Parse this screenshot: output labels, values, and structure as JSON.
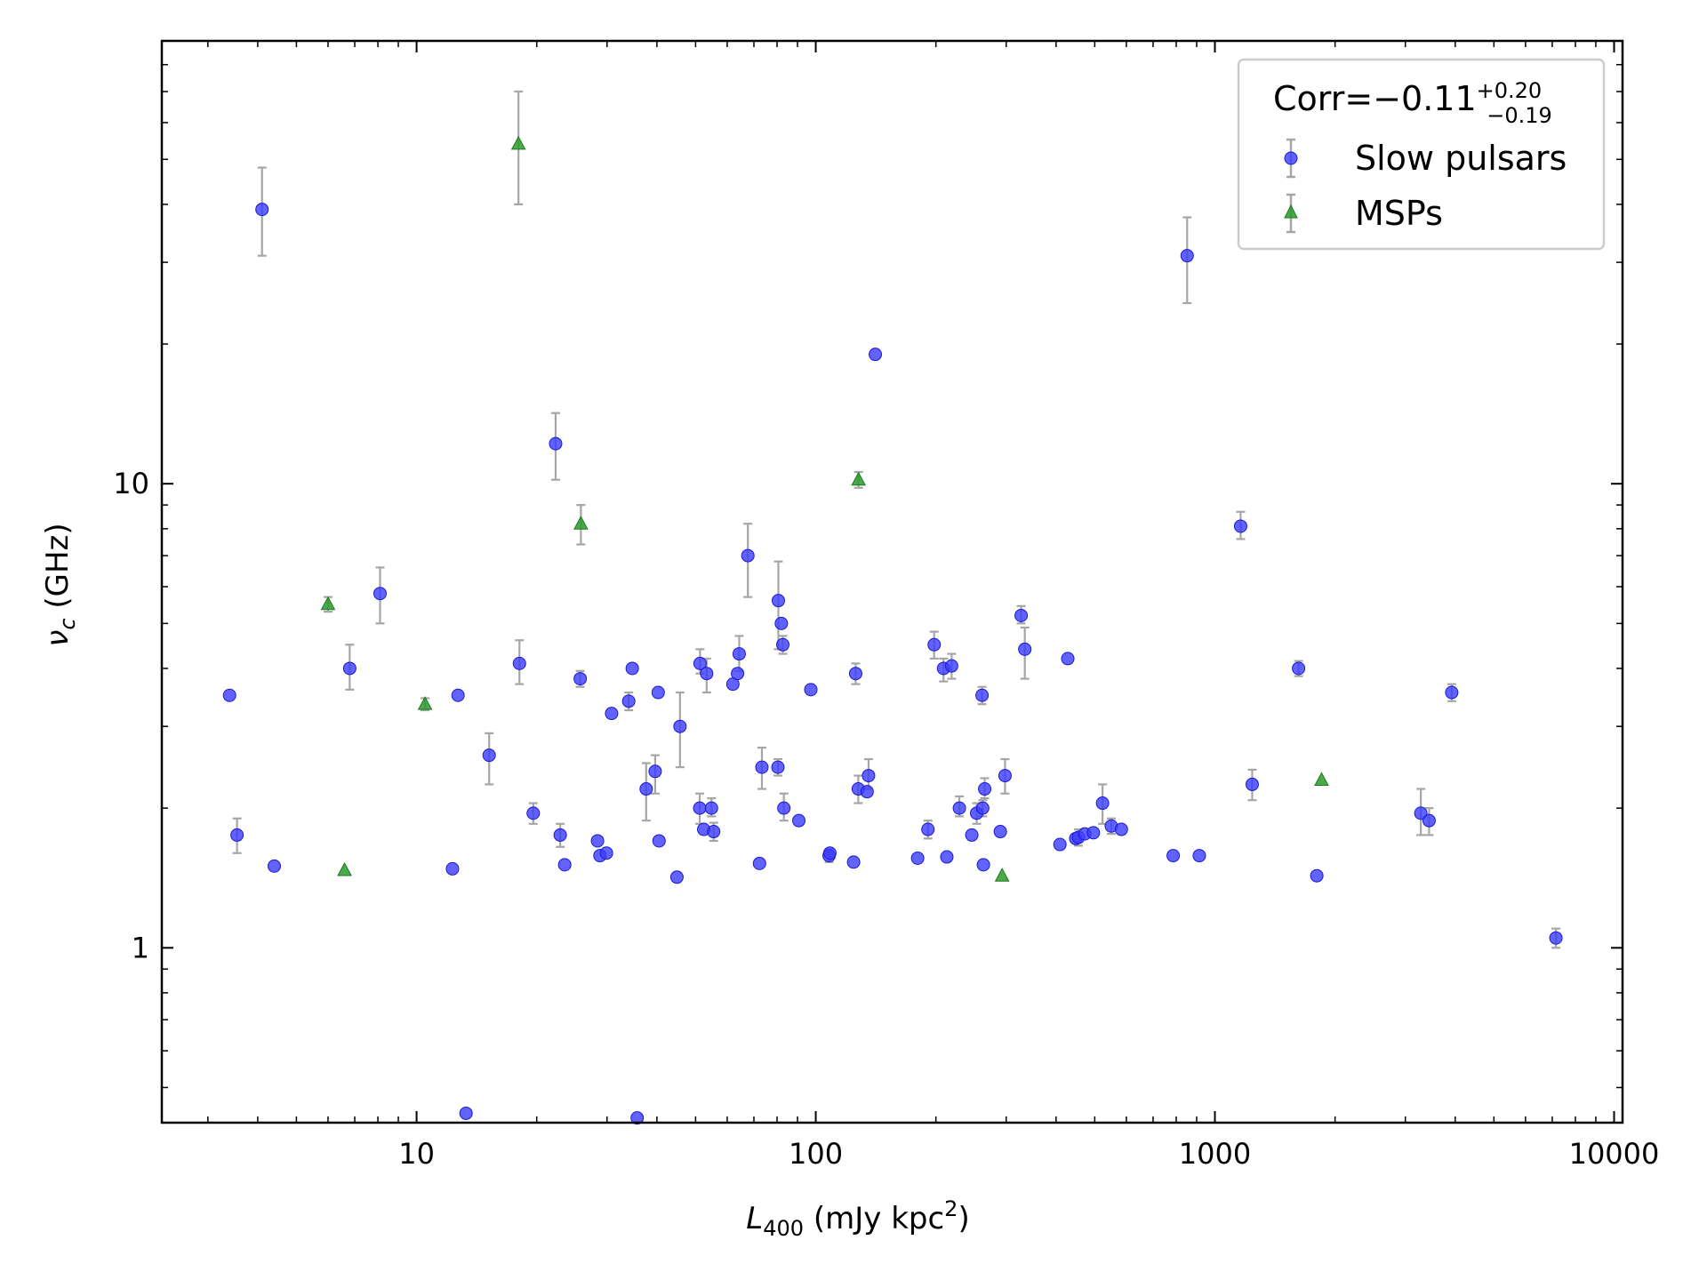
{
  "chart_data": {
    "type": "scatter",
    "xscale": "log",
    "yscale": "log",
    "xlim": [
      2.3,
      10500
    ],
    "ylim": [
      0.42,
      90
    ],
    "grid": false,
    "legend_position": "top-right",
    "xlabel": {
      "main": "L",
      "sub": "400",
      "rest": " (mJy kpc",
      "sup": "2",
      "close": ")"
    },
    "ylabel": {
      "main": "ν",
      "sub": "c",
      "rest": " (GHz)"
    },
    "x_ticks": [
      10,
      100,
      1000,
      10000
    ],
    "x_tick_labels": [
      "10",
      "100",
      "1000",
      "10000"
    ],
    "y_ticks": [
      1,
      10
    ],
    "y_tick_labels": [
      "1",
      "10"
    ],
    "legend": {
      "corr_prefix": "Corr=−0.11",
      "corr_sup": "+0.20",
      "corr_sub": "−0.19"
    },
    "colors": {
      "slow": "#3b3bff",
      "slow_edge": "#1a1ad0",
      "msp": "#2a9a2a",
      "msp_edge": "#1c7a1c",
      "errorbar": "#a6a6a6"
    },
    "series": [
      {
        "name": "Slow pulsars",
        "marker": "circle",
        "points": [
          {
            "x": 3.4,
            "y": 3.5
          },
          {
            "x": 3.55,
            "y": 1.75,
            "lo": 1.6,
            "hi": 1.9
          },
          {
            "x": 4.1,
            "y": 39,
            "lo": 31,
            "hi": 48
          },
          {
            "x": 4.4,
            "y": 1.5
          },
          {
            "x": 6.8,
            "y": 4.0,
            "lo": 3.6,
            "hi": 4.5
          },
          {
            "x": 8.1,
            "y": 5.8,
            "lo": 5.0,
            "hi": 6.6
          },
          {
            "x": 12.3,
            "y": 1.48
          },
          {
            "x": 12.7,
            "y": 3.5
          },
          {
            "x": 13.3,
            "y": 0.44
          },
          {
            "x": 15.2,
            "y": 2.6,
            "lo": 2.25,
            "hi": 2.9
          },
          {
            "x": 18.1,
            "y": 4.1,
            "lo": 3.7,
            "hi": 4.6
          },
          {
            "x": 19.6,
            "y": 1.95,
            "lo": 1.85,
            "hi": 2.05
          },
          {
            "x": 22.3,
            "y": 12.2,
            "lo": 10.2,
            "hi": 14.2
          },
          {
            "x": 22.9,
            "y": 1.75,
            "lo": 1.65,
            "hi": 1.85
          },
          {
            "x": 23.5,
            "y": 1.51
          },
          {
            "x": 25.7,
            "y": 3.8,
            "lo": 3.65,
            "hi": 3.95
          },
          {
            "x": 28.4,
            "y": 1.7
          },
          {
            "x": 28.8,
            "y": 1.58
          },
          {
            "x": 29.9,
            "y": 1.6
          },
          {
            "x": 30.8,
            "y": 3.2
          },
          {
            "x": 34.0,
            "y": 3.4,
            "lo": 3.25,
            "hi": 3.55
          },
          {
            "x": 34.7,
            "y": 4.0
          },
          {
            "x": 35.7,
            "y": 0.43
          },
          {
            "x": 37.6,
            "y": 2.2,
            "lo": 1.88,
            "hi": 2.5
          },
          {
            "x": 39.6,
            "y": 2.4,
            "lo": 2.15,
            "hi": 2.6
          },
          {
            "x": 40.3,
            "y": 3.55
          },
          {
            "x": 40.5,
            "y": 1.7
          },
          {
            "x": 44.9,
            "y": 1.42
          },
          {
            "x": 45.7,
            "y": 3.0,
            "lo": 2.45,
            "hi": 3.55
          },
          {
            "x": 51.2,
            "y": 2.0,
            "lo": 1.85,
            "hi": 2.15
          },
          {
            "x": 51.3,
            "y": 4.1,
            "lo": 3.9,
            "hi": 4.4
          },
          {
            "x": 52.4,
            "y": 1.8
          },
          {
            "x": 53.3,
            "y": 3.9,
            "lo": 3.55,
            "hi": 4.2
          },
          {
            "x": 54.8,
            "y": 2.0,
            "lo": 1.92,
            "hi": 2.1
          },
          {
            "x": 55.5,
            "y": 1.78,
            "lo": 1.7,
            "hi": 1.86
          },
          {
            "x": 62.0,
            "y": 3.7
          },
          {
            "x": 63.7,
            "y": 3.9
          },
          {
            "x": 64.3,
            "y": 4.3,
            "lo": 3.95,
            "hi": 4.7
          },
          {
            "x": 67.6,
            "y": 7.0,
            "lo": 5.7,
            "hi": 8.2
          },
          {
            "x": 72.3,
            "y": 1.52
          },
          {
            "x": 73.3,
            "y": 2.45,
            "lo": 2.2,
            "hi": 2.7
          },
          {
            "x": 80.4,
            "y": 2.45,
            "lo": 2.35,
            "hi": 2.55
          },
          {
            "x": 80.6,
            "y": 5.6,
            "lo": 4.4,
            "hi": 6.8
          },
          {
            "x": 82.0,
            "y": 5.0
          },
          {
            "x": 82.7,
            "y": 4.5,
            "lo": 4.3,
            "hi": 4.7
          },
          {
            "x": 83.2,
            "y": 2.0,
            "lo": 1.88,
            "hi": 2.15
          },
          {
            "x": 90.7,
            "y": 1.88
          },
          {
            "x": 97.2,
            "y": 3.6
          },
          {
            "x": 108.0,
            "y": 1.58,
            "lo": 1.53,
            "hi": 1.63
          },
          {
            "x": 108.5,
            "y": 1.6
          },
          {
            "x": 124.4,
            "y": 1.53
          },
          {
            "x": 125.9,
            "y": 3.9,
            "lo": 3.7,
            "hi": 4.1
          },
          {
            "x": 127.8,
            "y": 2.2,
            "lo": 2.05,
            "hi": 2.35
          },
          {
            "x": 134.5,
            "y": 2.17
          },
          {
            "x": 135.6,
            "y": 2.35,
            "lo": 2.2,
            "hi": 2.55
          },
          {
            "x": 141.0,
            "y": 19.0
          },
          {
            "x": 180.0,
            "y": 1.56
          },
          {
            "x": 191.0,
            "y": 1.8,
            "lo": 1.72,
            "hi": 1.88
          },
          {
            "x": 198.0,
            "y": 4.5,
            "lo": 4.2,
            "hi": 4.8
          },
          {
            "x": 209.0,
            "y": 4.0,
            "lo": 3.75,
            "hi": 4.2
          },
          {
            "x": 213.0,
            "y": 1.57
          },
          {
            "x": 219.0,
            "y": 4.05,
            "lo": 3.8,
            "hi": 4.3
          },
          {
            "x": 229.0,
            "y": 2.0,
            "lo": 1.92,
            "hi": 2.12
          },
          {
            "x": 246.0,
            "y": 1.75
          },
          {
            "x": 253.0,
            "y": 1.95,
            "lo": 1.85,
            "hi": 2.05
          },
          {
            "x": 261.0,
            "y": 3.5,
            "lo": 3.35,
            "hi": 3.65
          },
          {
            "x": 262.0,
            "y": 2.0,
            "lo": 1.92,
            "hi": 2.08
          },
          {
            "x": 263.0,
            "y": 1.51
          },
          {
            "x": 265.0,
            "y": 2.2,
            "lo": 2.1,
            "hi": 2.32
          },
          {
            "x": 290.0,
            "y": 1.78
          },
          {
            "x": 298.0,
            "y": 2.35,
            "lo": 2.15,
            "hi": 2.55
          },
          {
            "x": 327.0,
            "y": 5.2,
            "lo": 5.0,
            "hi": 5.45
          },
          {
            "x": 334.0,
            "y": 4.4,
            "lo": 3.8,
            "hi": 4.9
          },
          {
            "x": 409.0,
            "y": 1.67
          },
          {
            "x": 428.0,
            "y": 4.2
          },
          {
            "x": 448.0,
            "y": 1.72
          },
          {
            "x": 455.0,
            "y": 1.73,
            "lo": 1.66,
            "hi": 1.8
          },
          {
            "x": 472.0,
            "y": 1.76
          },
          {
            "x": 496.0,
            "y": 1.77
          },
          {
            "x": 523.0,
            "y": 2.05,
            "lo": 1.85,
            "hi": 2.25
          },
          {
            "x": 550.0,
            "y": 1.83,
            "lo": 1.76,
            "hi": 1.9
          },
          {
            "x": 583.0,
            "y": 1.8
          },
          {
            "x": 786.0,
            "y": 1.58
          },
          {
            "x": 852.0,
            "y": 31.0,
            "lo": 24.5,
            "hi": 37.5
          },
          {
            "x": 914.0,
            "y": 1.58
          },
          {
            "x": 1160.0,
            "y": 8.1,
            "lo": 7.6,
            "hi": 8.7
          },
          {
            "x": 1240.0,
            "y": 2.25,
            "lo": 2.08,
            "hi": 2.42
          },
          {
            "x": 1800.0,
            "y": 1.43
          },
          {
            "x": 1620.0,
            "y": 4.0,
            "lo": 3.85,
            "hi": 4.15
          },
          {
            "x": 3280.0,
            "y": 1.95,
            "lo": 1.75,
            "hi": 2.2
          },
          {
            "x": 3440.0,
            "y": 1.88,
            "lo": 1.75,
            "hi": 2.0
          },
          {
            "x": 3920.0,
            "y": 3.55,
            "lo": 3.4,
            "hi": 3.7
          },
          {
            "x": 7150.0,
            "y": 1.05,
            "lo": 1.0,
            "hi": 1.1
          }
        ]
      },
      {
        "name": "MSPs",
        "marker": "triangle",
        "points": [
          {
            "x": 6.0,
            "y": 5.5,
            "lo": 5.3,
            "hi": 5.7
          },
          {
            "x": 6.6,
            "y": 1.47
          },
          {
            "x": 10.5,
            "y": 3.35,
            "lo": 3.25,
            "hi": 3.45
          },
          {
            "x": 18.0,
            "y": 54,
            "lo": 40,
            "hi": 70
          },
          {
            "x": 25.8,
            "y": 8.2,
            "lo": 7.4,
            "hi": 9.0
          },
          {
            "x": 128.0,
            "y": 10.2,
            "lo": 9.8,
            "hi": 10.6
          },
          {
            "x": 293.0,
            "y": 1.43
          },
          {
            "x": 1850.0,
            "y": 2.3
          }
        ]
      }
    ]
  }
}
